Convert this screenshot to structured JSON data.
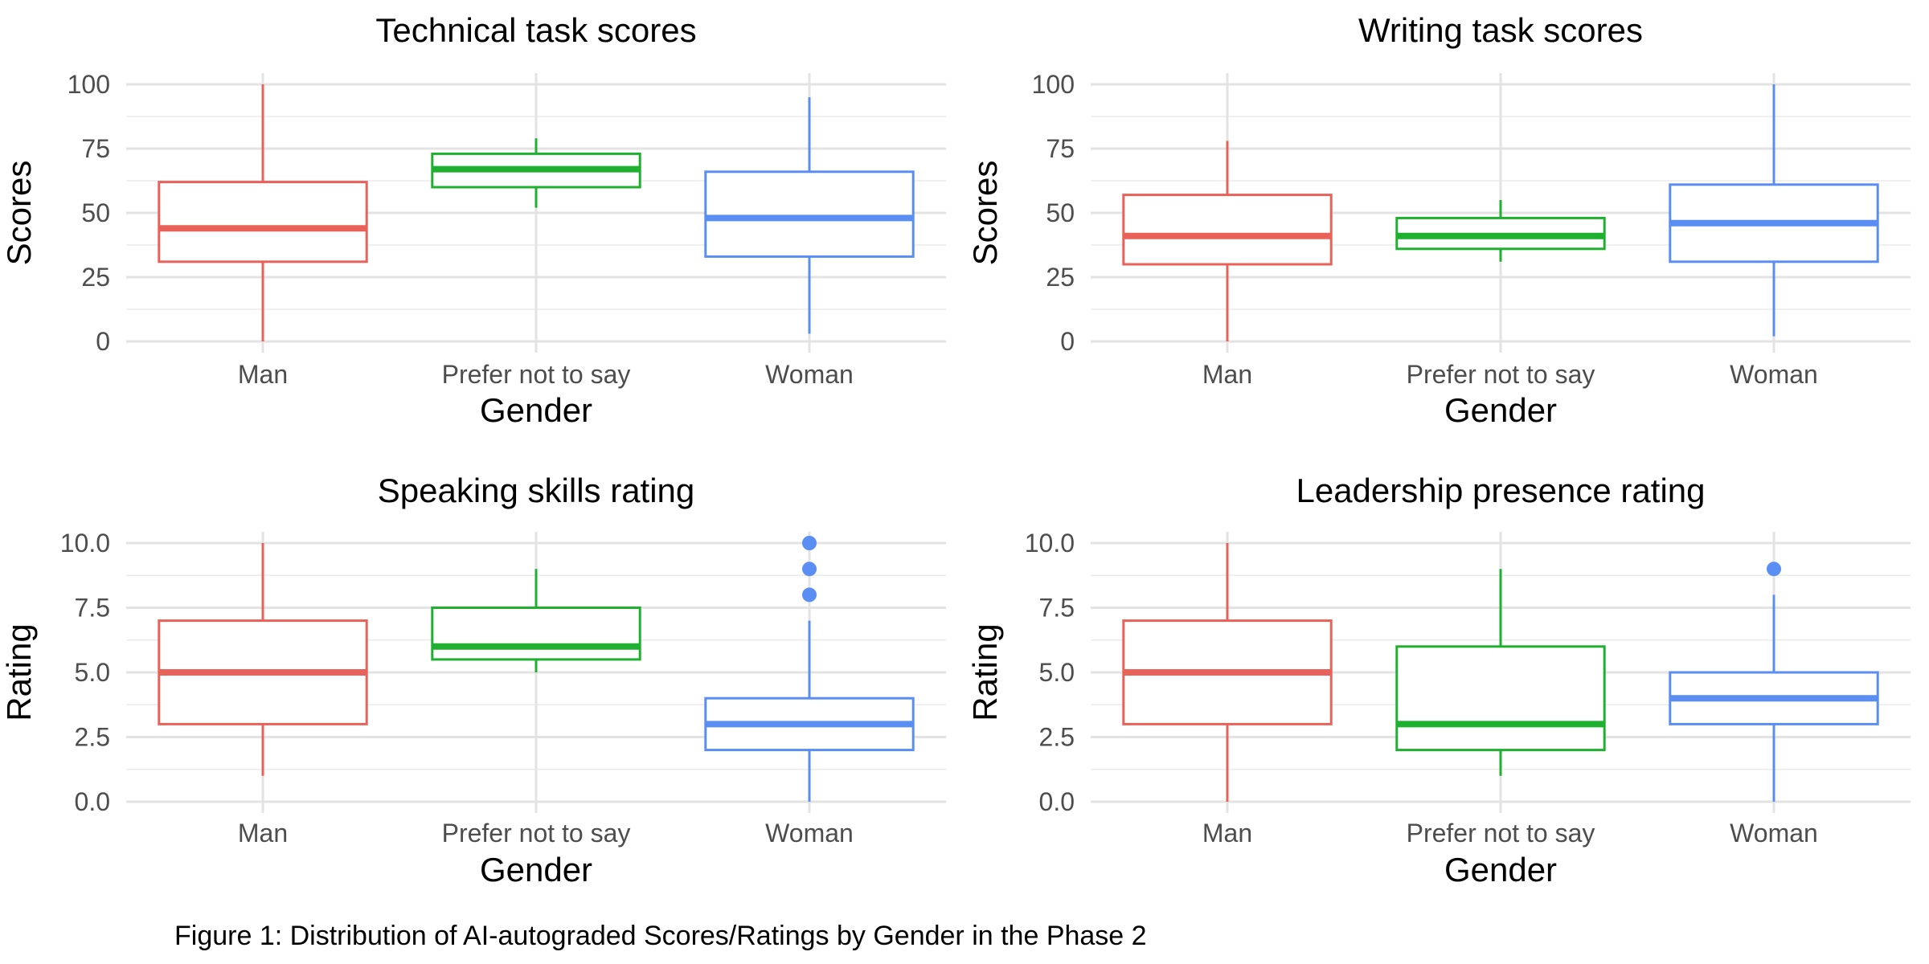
{
  "caption": "Figure 1: Distribution of AI-autograded Scores/Ratings by Gender in the Phase 2",
  "colors": {
    "Man": "#e8625a",
    "Prefer not to say": "#1fb030",
    "Woman": "#5a8ef2"
  },
  "chart_data": [
    {
      "type": "box",
      "title": "Technical task scores",
      "xlabel": "Gender",
      "ylabel": "Scores",
      "ylim": [
        0,
        100
      ],
      "yticks": [
        0,
        25,
        50,
        75,
        100
      ],
      "ytick_labels": [
        "0",
        "25",
        "50",
        "75",
        "100"
      ],
      "grid": true,
      "categories": [
        "Man",
        "Prefer not to say",
        "Woman"
      ],
      "boxes": [
        {
          "min": 0,
          "q1": 31,
          "median": 44,
          "q3": 62,
          "max": 100,
          "outliers": []
        },
        {
          "min": 52,
          "q1": 60,
          "median": 67,
          "q3": 73,
          "max": 79,
          "outliers": []
        },
        {
          "min": 3,
          "q1": 33,
          "median": 48,
          "q3": 66,
          "max": 95,
          "outliers": []
        }
      ]
    },
    {
      "type": "box",
      "title": "Writing task scores",
      "xlabel": "Gender",
      "ylabel": "Scores",
      "ylim": [
        0,
        100
      ],
      "yticks": [
        0,
        25,
        50,
        75,
        100
      ],
      "ytick_labels": [
        "0",
        "25",
        "50",
        "75",
        "100"
      ],
      "grid": true,
      "categories": [
        "Man",
        "Prefer not to say",
        "Woman"
      ],
      "boxes": [
        {
          "min": 0,
          "q1": 30,
          "median": 41,
          "q3": 57,
          "max": 78,
          "outliers": []
        },
        {
          "min": 31,
          "q1": 36,
          "median": 41,
          "q3": 48,
          "max": 55,
          "outliers": []
        },
        {
          "min": 2,
          "q1": 31,
          "median": 46,
          "q3": 61,
          "max": 100,
          "outliers": []
        }
      ]
    },
    {
      "type": "box",
      "title": "Speaking skills rating",
      "xlabel": "Gender",
      "ylabel": "Rating",
      "ylim": [
        0,
        10
      ],
      "yticks": [
        0,
        2.5,
        5,
        7.5,
        10
      ],
      "ytick_labels": [
        "0.0",
        "2.5",
        "5.0",
        "7.5",
        "10.0"
      ],
      "grid": true,
      "categories": [
        "Man",
        "Prefer not to say",
        "Woman"
      ],
      "boxes": [
        {
          "min": 1,
          "q1": 3,
          "median": 5,
          "q3": 7,
          "max": 10,
          "outliers": []
        },
        {
          "min": 5,
          "q1": 5.5,
          "median": 6,
          "q3": 7.5,
          "max": 9,
          "outliers": []
        },
        {
          "min": 0,
          "q1": 2,
          "median": 3,
          "q3": 4,
          "max": 7,
          "outliers": [
            8,
            9,
            10
          ]
        }
      ]
    },
    {
      "type": "box",
      "title": "Leadership presence rating",
      "xlabel": "Gender",
      "ylabel": "Rating",
      "ylim": [
        0,
        10
      ],
      "yticks": [
        0,
        2.5,
        5,
        7.5,
        10
      ],
      "ytick_labels": [
        "0.0",
        "2.5",
        "5.0",
        "7.5",
        "10.0"
      ],
      "grid": true,
      "categories": [
        "Man",
        "Prefer not to say",
        "Woman"
      ],
      "boxes": [
        {
          "min": 0,
          "q1": 3,
          "median": 5,
          "q3": 7,
          "max": 10,
          "outliers": []
        },
        {
          "min": 1,
          "q1": 2,
          "median": 3,
          "q3": 6,
          "max": 9,
          "outliers": []
        },
        {
          "min": 0,
          "q1": 3,
          "median": 4,
          "q3": 5,
          "max": 8,
          "outliers": [
            9
          ]
        }
      ]
    }
  ]
}
